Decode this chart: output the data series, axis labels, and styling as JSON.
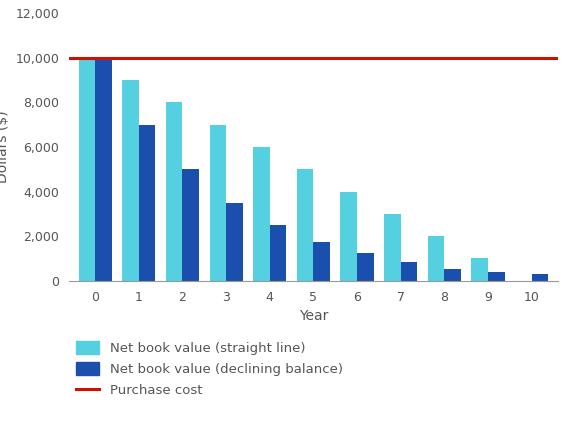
{
  "years": [
    0,
    1,
    2,
    3,
    4,
    5,
    6,
    7,
    8,
    9,
    10
  ],
  "straight_line": [
    10000,
    9000,
    8000,
    7000,
    6000,
    5000,
    4000,
    3000,
    2000,
    1000,
    0
  ],
  "declining_balance": [
    10000,
    7000,
    5000,
    3500,
    2500,
    1750,
    1250,
    850,
    550,
    400,
    300
  ],
  "purchase_cost": 10000,
  "color_straight": "#55D0E0",
  "color_declining": "#1B4FAD",
  "color_purchase": "#CC1100",
  "xlabel": "Year",
  "ylabel": "Dollars ($)",
  "ylim": [
    0,
    12000
  ],
  "yticks": [
    0,
    2000,
    4000,
    6000,
    8000,
    10000,
    12000
  ],
  "legend_straight": "Net book value (straight line)",
  "legend_declining": "Net book value (declining balance)",
  "legend_purchase": "Purchase cost",
  "background_color": "#ffffff",
  "bar_width": 0.38
}
